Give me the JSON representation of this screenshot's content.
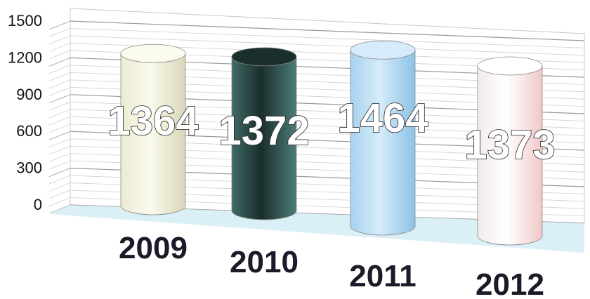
{
  "chart_data": {
    "type": "bar",
    "style": "3d-cylinder",
    "categories": [
      "2009",
      "2010",
      "2011",
      "2012"
    ],
    "values": [
      1364,
      1372,
      1464,
      1373
    ],
    "data_labels": [
      "1364",
      "1372",
      "1464",
      "1373"
    ],
    "ylim": [
      0,
      1500
    ],
    "yticks": [
      "1500",
      "1200",
      "900",
      "600",
      "300",
      "0"
    ],
    "ytick_values": [
      1500,
      1200,
      900,
      600,
      300,
      0
    ],
    "grid": true,
    "legend": "none",
    "bar_colors": [
      [
        "#ecead2",
        "#fbfbee",
        "#d8d6b8"
      ],
      [
        "#3f6b67",
        "#1a2e2c",
        "#4c7c77"
      ],
      [
        "#a7d2ee",
        "#d6ecfa",
        "#8cc2e6"
      ],
      [
        "#f4eaea",
        "#ffffff",
        "#f0c8c8"
      ]
    ],
    "floor_color": "#cfe9f4"
  }
}
